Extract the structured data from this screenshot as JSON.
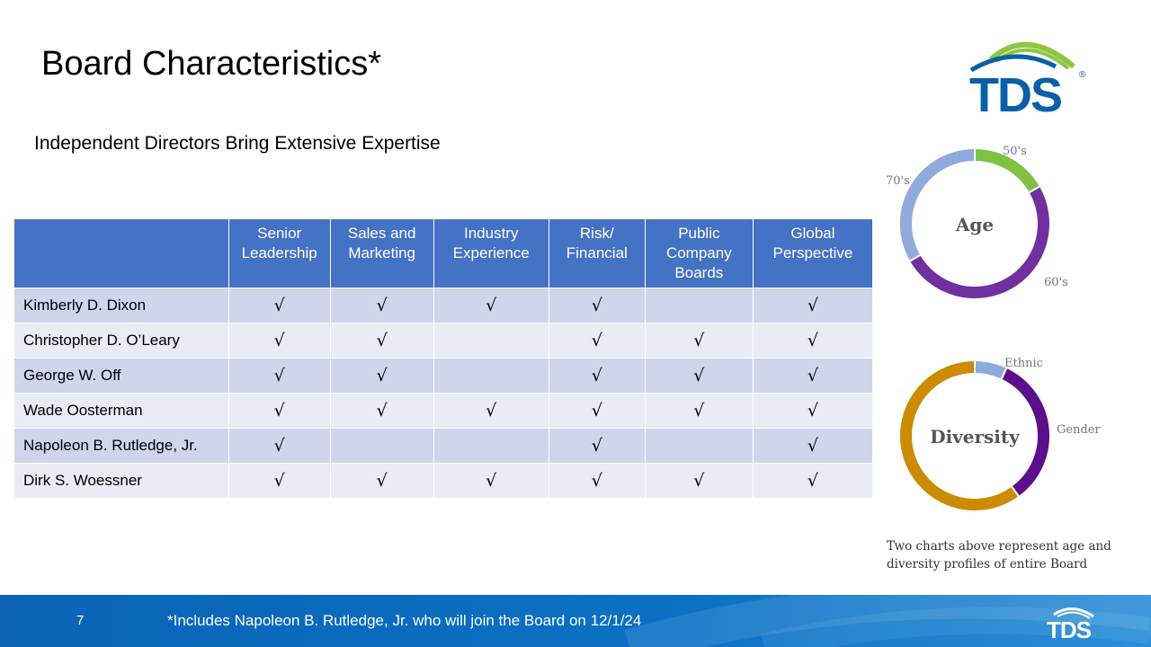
{
  "title": "Board Characteristics*",
  "subtitle": "Independent Directors Bring Extensive Expertise",
  "logo": {
    "text": "TDS",
    "registered": "®",
    "arc_color": "#8cc63f",
    "text_color": "#0b5ea8"
  },
  "table": {
    "headers": [
      "",
      "Senior\nLeadership",
      "Sales and\nMarketing",
      "Industry\nExperience",
      "Risk/\nFinancial",
      "Public\nCompany\nBoards",
      "Global\nPerspective"
    ],
    "check_symbol": "√",
    "rows": [
      {
        "name": "Kimberly D. Dixon",
        "marks": [
          "√",
          "√",
          "√",
          "√",
          "",
          "√"
        ]
      },
      {
        "name": "Christopher D. O’Leary",
        "marks": [
          "√",
          "√",
          "",
          "√",
          "√",
          "√"
        ]
      },
      {
        "name": "George W. Off",
        "marks": [
          "√",
          "√",
          "",
          "√",
          "√",
          "√"
        ]
      },
      {
        "name": "Wade Oosterman",
        "marks": [
          "√",
          "√",
          "√",
          "√",
          "√",
          "√"
        ]
      },
      {
        "name": "Napoleon B. Rutledge, Jr.",
        "marks": [
          "√",
          "",
          "",
          "√",
          "",
          "√"
        ]
      },
      {
        "name": "Dirk S. Woessner",
        "marks": [
          "√",
          "√",
          "√",
          "√",
          "√",
          "√"
        ]
      }
    ]
  },
  "chart_data": [
    {
      "type": "pie",
      "title": "Age",
      "categories": [
        "50's",
        "60's",
        "70's"
      ],
      "values": [
        0.167,
        0.5,
        0.333
      ],
      "colors": [
        "#7dc242",
        "#7030a0",
        "#8faadc"
      ]
    },
    {
      "type": "pie",
      "title": "Diversity",
      "categories": [
        "Ethnic",
        "Gender",
        ""
      ],
      "values": [
        0.07,
        0.33,
        0.6
      ],
      "colors": [
        "#8faadc",
        "#5b0f8b",
        "#cc8b00"
      ]
    }
  ],
  "note": "Two charts above represent age and diversity profiles of entire Board",
  "footer": {
    "page_number": "7",
    "footnote": "*Includes Napoleon B. Rutledge, Jr. who will join the Board on 12/1/24",
    "logo_text": "TDS"
  }
}
